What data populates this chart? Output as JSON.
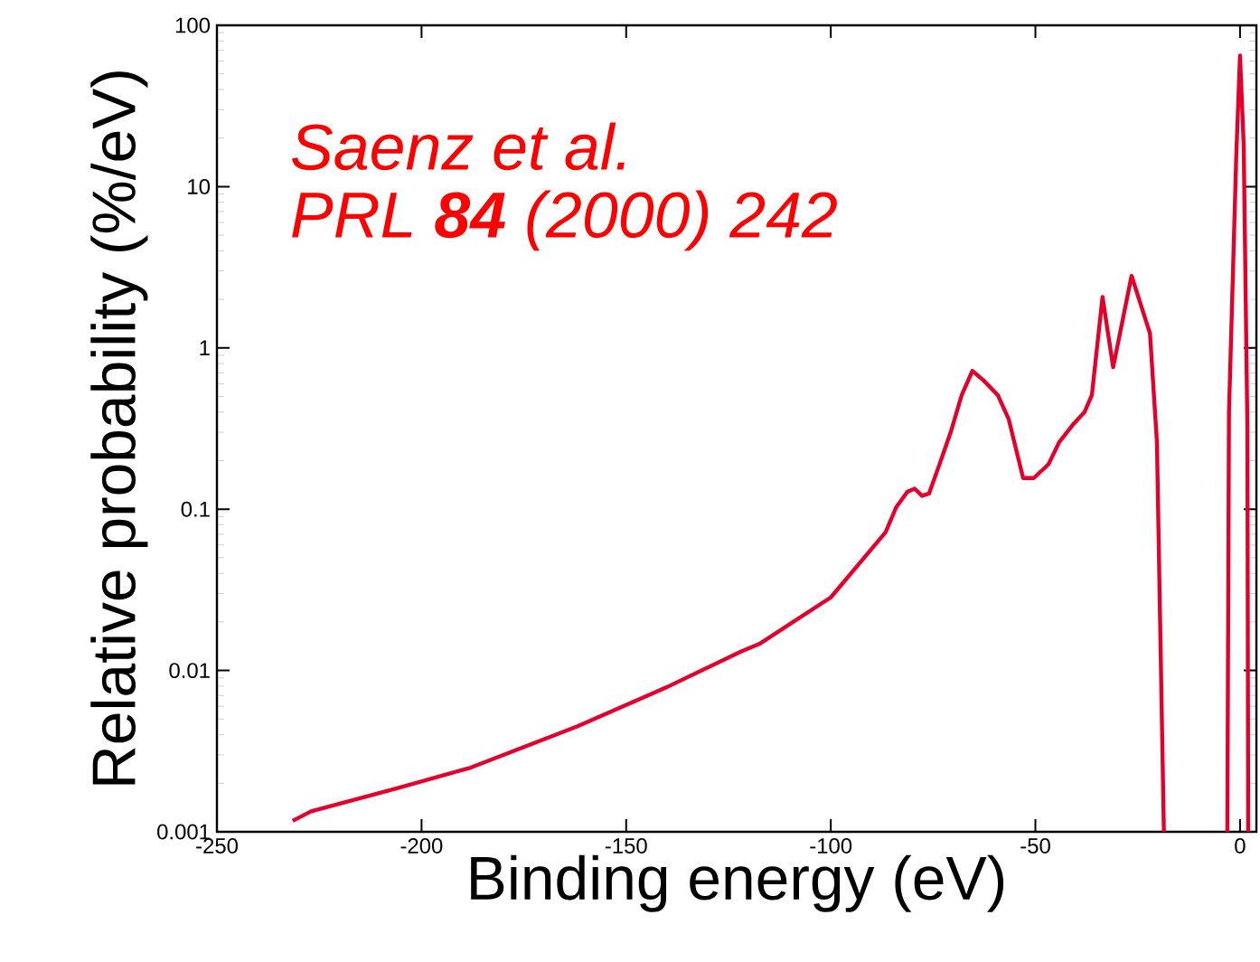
{
  "chart_data": {
    "type": "line",
    "xlabel": "Binding energy (eV)",
    "ylabel": "Relative probability (%/eV)",
    "annotations": [
      "Saenz et al.",
      "PRL **84** (2000) 242"
    ],
    "color": "#e4002b",
    "log": true,
    "xlim": [
      -250,
      4
    ],
    "ylim": [
      0.001,
      100
    ],
    "xticks": [
      -250,
      -200,
      -150,
      -100,
      -50,
      0
    ],
    "yticks": [
      0.001,
      0.01,
      0.1,
      1,
      10,
      100
    ],
    "x": [
      -231.5,
      -227,
      -206,
      -188,
      -162,
      -140,
      -122,
      -117.5,
      -100,
      -86.6,
      -84,
      -81.3,
      -79.5,
      -77.7,
      -76,
      -73.3,
      -70.7,
      -68,
      -65.4,
      -62.7,
      -59.2,
      -56.5,
      -53,
      -50.4,
      -46.8,
      -44.2,
      -40.6,
      -38,
      -36.2,
      -33.6,
      -31,
      -26.5,
      -22,
      -20.3,
      -19.4,
      -18.6,
      -10,
      -3.1,
      -2.7,
      -0.9,
      0,
      0.9,
      1.8,
      2.0
    ],
    "values": [
      0.00117,
      0.00134,
      0.00186,
      0.0025,
      0.0045,
      0.0079,
      0.0131,
      0.0146,
      0.0284,
      0.072,
      0.103,
      0.128,
      0.134,
      0.121,
      0.125,
      0.194,
      0.3,
      0.51,
      0.72,
      0.63,
      0.51,
      0.36,
      0.156,
      0.156,
      0.19,
      0.26,
      0.34,
      0.4,
      0.51,
      2.07,
      0.76,
      2.8,
      1.23,
      0.26,
      0.0134,
      0.001,
      null,
      0.001,
      0.4,
      16,
      65,
      18,
      0.32,
      0.001
    ]
  }
}
